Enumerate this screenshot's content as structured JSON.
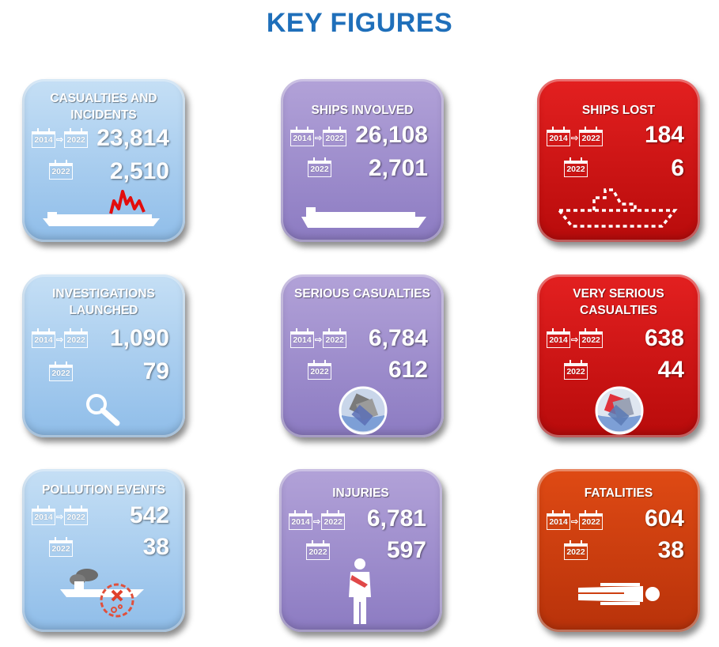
{
  "title": "KEY FIGURES",
  "cards": [
    {
      "title": "CASUALTIES AND INCIDENTS",
      "from": "2014",
      "to": "2022",
      "total": "23,814",
      "year": "2022",
      "value": "2,510",
      "icon": "ship-damage-icon"
    },
    {
      "title": "SHIPS INVOLVED",
      "from": "2014",
      "to": "2022",
      "total": "26,108",
      "year": "2022",
      "value": "2,701",
      "icon": "ship-icon"
    },
    {
      "title": "SHIPS LOST",
      "from": "2014",
      "to": "2022",
      "total": "184",
      "year": "2022",
      "value": "6",
      "icon": "ship-outline-icon"
    },
    {
      "title": "INVESTIGATIONS LAUNCHED",
      "from": "2014",
      "to": "2022",
      "total": "1,090",
      "year": "2022",
      "value": "79",
      "icon": "magnifier-icon"
    },
    {
      "title": "SERIOUS CASUALTIES",
      "from": "2014",
      "to": "2022",
      "total": "6,784",
      "year": "2022",
      "value": "612",
      "icon": "sinking-ship-icon"
    },
    {
      "title": "VERY SERIOUS CASUALTIES",
      "from": "2014",
      "to": "2022",
      "total": "638",
      "year": "2022",
      "value": "44",
      "icon": "sinking-ship-red-icon"
    },
    {
      "title": "POLLUTION EVENTS",
      "from": "2014",
      "to": "2022",
      "total": "542",
      "year": "2022",
      "value": "38",
      "icon": "pollution-ship-icon"
    },
    {
      "title": "INJURIES",
      "from": "2014",
      "to": "2022",
      "total": "6,781",
      "year": "2022",
      "value": "597",
      "icon": "injured-person-icon"
    },
    {
      "title": "FATALITIES",
      "from": "2014",
      "to": "2022",
      "total": "604",
      "year": "2022",
      "value": "38",
      "icon": "lying-person-icon"
    }
  ],
  "colors": {
    "title": "#1f6fba",
    "blue": "#a9cff1",
    "purple": "#9e8fcd",
    "red": "#d21414",
    "orange": "#cd3f10"
  }
}
